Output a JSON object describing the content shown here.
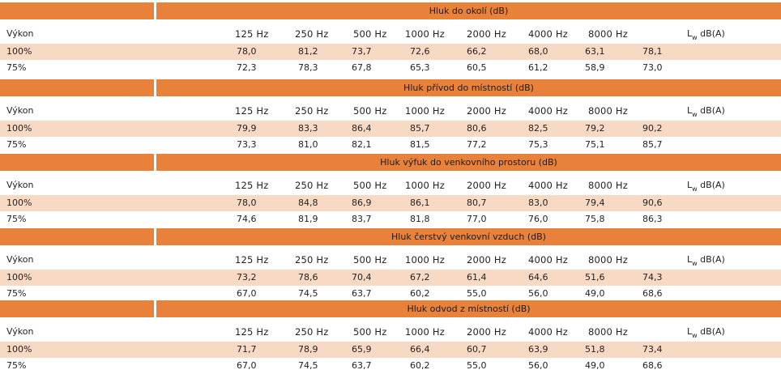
{
  "power_label": "Výkon",
  "lw_letter": "L",
  "lw_sub": "w",
  "lw_unit": " dB(A)",
  "frequencies": [
    "125 Hz",
    "250 Hz",
    "500 Hz",
    "1000 Hz",
    "2000 Hz",
    "4000 Hz",
    "8000 Hz"
  ],
  "sections": [
    {
      "title": "Hluk do okolí (dB)",
      "rows": [
        {
          "label": "100%",
          "values": [
            "78,0",
            "81,2",
            "73,7",
            "72,6",
            "66,2",
            "68,0",
            "63,1"
          ],
          "lw": "78,1"
        },
        {
          "label": "75%",
          "values": [
            "72,3",
            "78,3",
            "67,8",
            "65,3",
            "60,5",
            "61,2",
            "58,9"
          ],
          "lw": "73,0"
        }
      ]
    },
    {
      "title": "Hluk přívod do místností (dB)",
      "rows": [
        {
          "label": "100%",
          "values": [
            "79,9",
            "83,3",
            "86,4",
            "85,7",
            "80,6",
            "82,5",
            "79,2"
          ],
          "lw": "90,2"
        },
        {
          "label": "75%",
          "values": [
            "73,3",
            "81,0",
            "82,1",
            "81,5",
            "77,2",
            "75,3",
            "75,1"
          ],
          "lw": "85,7"
        }
      ]
    },
    {
      "title": "Hluk výfuk do venkovního prostoru (dB)",
      "rows": [
        {
          "label": "100%",
          "values": [
            "78,0",
            "84,8",
            "86,9",
            "86,1",
            "80,7",
            "83,0",
            "79,4"
          ],
          "lw": "90,6"
        },
        {
          "label": "75%",
          "values": [
            "74,6",
            "81,9",
            "83,7",
            "81,8",
            "77,0",
            "76,0",
            "75,8"
          ],
          "lw": "86,3"
        }
      ]
    },
    {
      "title": "Hluk čerstvý venkovní vzduch (dB)",
      "rows": [
        {
          "label": "100%",
          "values": [
            "73,2",
            "78,6",
            "70,4",
            "67,2",
            "61,4",
            "64,6",
            "51,6"
          ],
          "lw": "74,3"
        },
        {
          "label": "75%",
          "values": [
            "67,0",
            "74,5",
            "63,7",
            "60,2",
            "55,0",
            "56,0",
            "49,0"
          ],
          "lw": "68,6"
        }
      ]
    },
    {
      "title": "Hluk odvod z místností (dB)",
      "rows": [
        {
          "label": "100%",
          "values": [
            "71,7",
            "78,9",
            "65,9",
            "66,4",
            "60,7",
            "63,9",
            "51,8"
          ],
          "lw": "73,4"
        },
        {
          "label": "75%",
          "values": [
            "67,0",
            "74,5",
            "63,7",
            "60,2",
            "55,0",
            "56,0",
            "49,0"
          ],
          "lw": "68,6"
        }
      ]
    }
  ]
}
